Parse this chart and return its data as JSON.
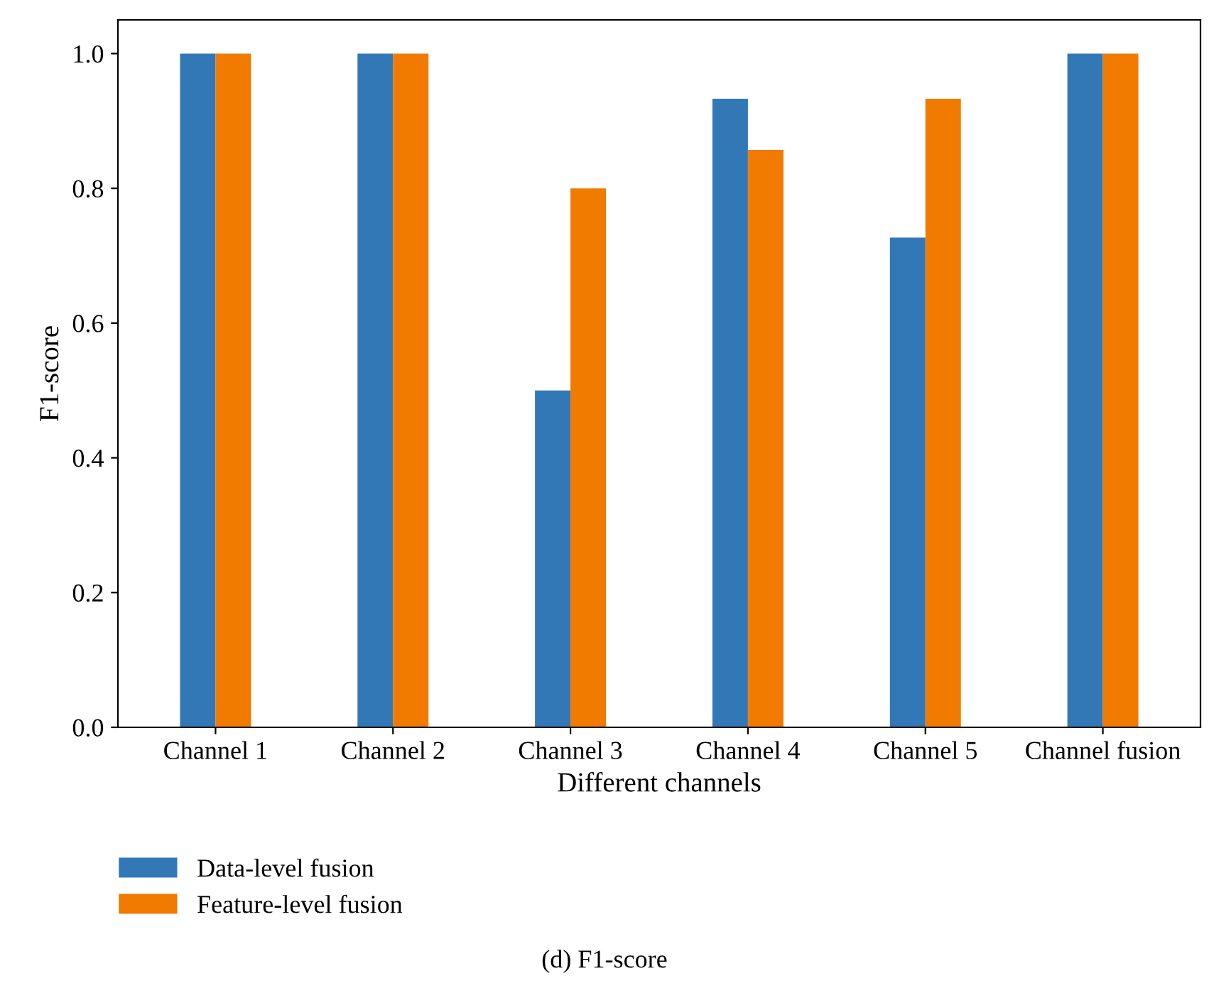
{
  "chart_data": {
    "type": "bar",
    "xlabel": "Different channels",
    "ylabel": "F1-score",
    "categories": [
      "Channel 1",
      "Channel 2",
      "Channel 3",
      "Channel 4",
      "Channel 5",
      "Channel fusion"
    ],
    "series": [
      {
        "name": "Data-level fusion",
        "color": "#3278b6",
        "values": [
          1.0,
          1.0,
          0.5,
          0.933,
          0.727,
          1.0
        ]
      },
      {
        "name": "Feature-level fusion",
        "color": "#f07b00",
        "values": [
          1.0,
          1.0,
          0.8,
          0.857,
          0.933,
          1.0
        ]
      }
    ],
    "ylim": [
      0,
      1.05
    ],
    "yticks": [
      {
        "value": 0,
        "label": "0.0"
      },
      0.2,
      0.4,
      0.6,
      0.8,
      {
        "value": 1,
        "label": "1.0"
      }
    ],
    "legend": "bottom left",
    "grid": false,
    "annotations": [
      "(d) F1-score"
    ]
  }
}
